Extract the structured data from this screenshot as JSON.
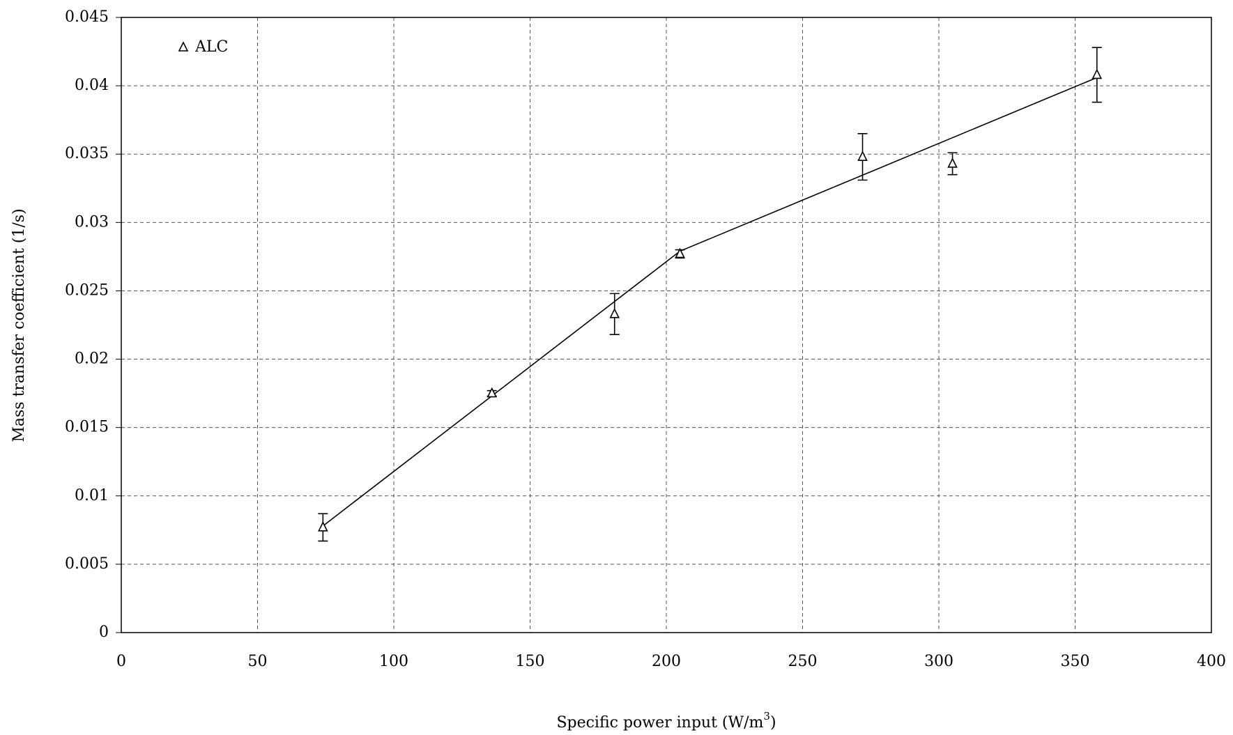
{
  "chart_data": {
    "type": "scatter",
    "xlabel": [
      "Specific power input (W/m",
      "3",
      ")"
    ],
    "ylabel": "Mass transfer coefficient (1/s)",
    "xlim": [
      0,
      400
    ],
    "xticks": [
      0,
      50,
      100,
      150,
      200,
      250,
      300,
      350,
      400
    ],
    "ylim": [
      0,
      0.045
    ],
    "yticks": [
      0,
      0.005,
      0.01,
      0.015,
      0.02,
      0.025,
      0.03,
      0.035,
      0.04,
      0.045
    ],
    "grid": true,
    "legend": "upper left",
    "series": [
      {
        "name": "ALC",
        "color": "#000000",
        "x": [
          74,
          136,
          181,
          205,
          272,
          305,
          358
        ],
        "values": [
          0.0077,
          0.0175,
          0.0233,
          0.0277,
          0.0348,
          0.0343,
          0.0408
        ],
        "errors": [
          0.001,
          0.0002,
          0.0015,
          0.0003,
          0.0017,
          0.0008,
          0.002
        ]
      }
    ],
    "fit": {
      "color": "#000000",
      "x": [
        74,
        205,
        358
      ],
      "values": [
        0.0078,
        0.0279,
        0.0406
      ]
    }
  }
}
